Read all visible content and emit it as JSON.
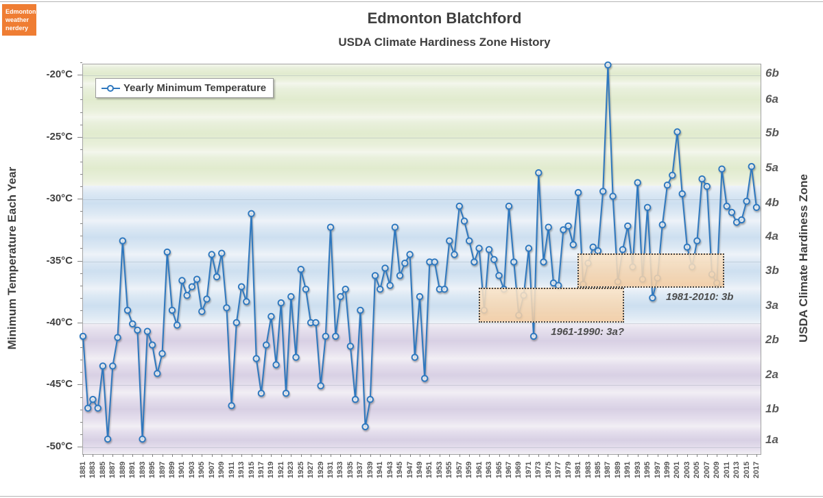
{
  "page": {
    "title": "Edmonton Blatchford",
    "subtitle": "USDA Climate Hardiness Zone History"
  },
  "logo": {
    "lines": [
      "Edmonton",
      "weather",
      "nerdery"
    ],
    "bg_color": "#ef7d33"
  },
  "legend": {
    "label": "Yearly Minimum Temperature"
  },
  "axes": {
    "left_title": "Minimum Temperature Each Year",
    "right_title": "USDA Climate Hardiness Zone",
    "y_tick_labels": [
      "-20°C",
      "-25°C",
      "-30°C",
      "-35°C",
      "-40°C",
      "-45°C",
      "-50°C"
    ],
    "y_ticks_c": [
      -20,
      -25,
      -30,
      -35,
      -40,
      -45,
      -50
    ]
  },
  "chart_data": {
    "type": "line",
    "title": "Edmonton Blatchford — USDA Climate Hardiness Zone History",
    "series_name": "Yearly Minimum Temperature",
    "xlabel": "",
    "ylabel": "Minimum Temperature Each Year (°C)",
    "x_start": 1881,
    "x_end": 2017,
    "ylim": [
      -50.56,
      -19.1
    ],
    "grid": "zone-bands",
    "legend_position": "top-left-inside",
    "line_color": "#2e78bf",
    "marker": "open-circle",
    "x_tick_labels": [
      "1881",
      "1883",
      "1885",
      "1887",
      "1889",
      "1891",
      "1893",
      "1895",
      "1897",
      "1899",
      "1901",
      "1903",
      "1905",
      "1907",
      "1909",
      "1911",
      "1913",
      "1915",
      "1917",
      "1919",
      "1921",
      "1923",
      "1925",
      "1927",
      "1929",
      "1931",
      "1933",
      "1935",
      "1937",
      "1939",
      "1941",
      "1943",
      "1945",
      "1947",
      "1949",
      "1951",
      "1953",
      "1955",
      "1957",
      "1959",
      "1961",
      "1963",
      "1965",
      "1967",
      "1969",
      "1971",
      "1973",
      "1975",
      "1977",
      "1979",
      "1981",
      "1983",
      "1985",
      "1987",
      "1989",
      "1991",
      "1993",
      "1995",
      "1997",
      "1999",
      "2001",
      "2003",
      "2005",
      "2007",
      "2009",
      "2011",
      "2013",
      "2015",
      "2017"
    ],
    "values": [
      -41.1,
      -46.9,
      -46.2,
      -46.9,
      -43.5,
      -49.4,
      -43.5,
      -41.2,
      -33.4,
      -39.0,
      -40.1,
      -40.6,
      -49.4,
      -40.7,
      -41.8,
      -44.1,
      -42.5,
      -34.3,
      -39.0,
      -40.2,
      -36.6,
      -37.8,
      -37.1,
      -36.5,
      -39.1,
      -38.1,
      -34.5,
      -36.3,
      -34.4,
      -38.8,
      -46.7,
      -40.0,
      -37.1,
      -38.3,
      -31.2,
      -42.9,
      -45.7,
      -41.8,
      -39.5,
      -43.4,
      -38.4,
      -45.7,
      -37.9,
      -42.8,
      -35.7,
      -37.3,
      -40.0,
      -40.0,
      -45.1,
      -41.1,
      -32.3,
      -41.1,
      -37.9,
      -37.3,
      -41.9,
      -46.2,
      -39.0,
      -48.4,
      -46.2,
      -36.2,
      -37.3,
      -35.6,
      -37.0,
      -32.3,
      -36.2,
      -35.2,
      -34.5,
      -42.8,
      -37.9,
      -44.5,
      -35.1,
      -35.1,
      -37.3,
      -37.3,
      -33.4,
      -34.5,
      -30.6,
      -31.8,
      -33.4,
      -35.1,
      -34.0,
      -39.0,
      -34.1,
      -34.9,
      -36.2,
      -37.3,
      -30.6,
      -35.1,
      -39.4,
      -37.8,
      -34.0,
      -41.1,
      -27.9,
      -35.1,
      -32.3,
      -36.8,
      -37.0,
      -32.5,
      -32.2,
      -33.7,
      -29.5,
      -36.9,
      -35.2,
      -33.9,
      -34.2,
      -29.4,
      -19.2,
      -29.8,
      -36.7,
      -34.1,
      -32.2,
      -35.5,
      -28.7,
      -36.5,
      -30.7,
      -38.0,
      -36.4,
      -32.1,
      -28.9,
      -28.1,
      -24.6,
      -29.6,
      -33.9,
      -35.5,
      -33.4,
      -28.4,
      -29.0,
      -36.1,
      -36.8,
      -27.6,
      -30.6,
      -31.1,
      -31.9,
      -31.7,
      -30.2,
      -27.4,
      -30.7
    ],
    "zones": [
      {
        "label": "6b",
        "top": -17.8,
        "bottom": -20.6,
        "family": "green"
      },
      {
        "label": "6a",
        "top": -20.6,
        "bottom": -23.3,
        "family": "green"
      },
      {
        "label": "5b",
        "top": -23.3,
        "bottom": -26.1,
        "family": "green"
      },
      {
        "label": "5a",
        "top": -26.1,
        "bottom": -28.9,
        "family": "green"
      },
      {
        "label": "4b",
        "top": -28.9,
        "bottom": -31.7,
        "family": "blue"
      },
      {
        "label": "4a",
        "top": -31.7,
        "bottom": -34.4,
        "family": "blue"
      },
      {
        "label": "3b",
        "top": -34.4,
        "bottom": -37.2,
        "family": "blue"
      },
      {
        "label": "3a",
        "top": -37.2,
        "bottom": -40.0,
        "family": "blue"
      },
      {
        "label": "2b",
        "top": -40.0,
        "bottom": -42.8,
        "family": "purple"
      },
      {
        "label": "2a",
        "top": -42.8,
        "bottom": -45.6,
        "family": "purple"
      },
      {
        "label": "1b",
        "top": -45.6,
        "bottom": -48.3,
        "family": "purple"
      },
      {
        "label": "1a",
        "top": -48.3,
        "bottom": -51.1,
        "family": "purple"
      }
    ],
    "annotations": [
      {
        "label": "1961-1990: 3a?",
        "start_year": 1961,
        "end_year": 1990,
        "temp_top": -37.2,
        "temp_bottom": -40.0,
        "zone": "3a"
      },
      {
        "label": "1981-2010: 3b",
        "start_year": 1981,
        "end_year": 2010,
        "temp_top": -34.4,
        "temp_bottom": -37.2,
        "zone": "3b"
      }
    ]
  }
}
